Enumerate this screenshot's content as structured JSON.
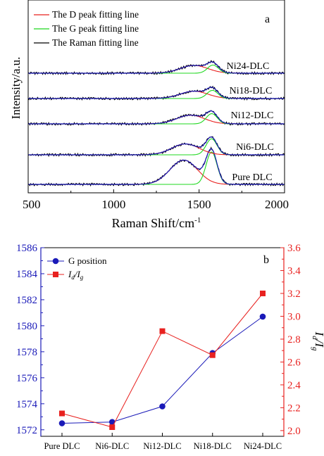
{
  "chart_data": [
    {
      "panel_label": "a",
      "type": "line",
      "xlabel": "Raman Shift/cm",
      "xlabel_superscript": "-1",
      "ylabel": "Intensity/a.u.",
      "xlim": [
        500,
        2000
      ],
      "x_ticks": [
        500,
        1000,
        1500,
        2000
      ],
      "y_ticks": "none",
      "legend_position": "top-left",
      "legend": [
        {
          "label": "The D peak fitting line",
          "color": "#e8211f"
        },
        {
          "label": "The G peak fitting line",
          "color": "#1fd81f"
        },
        {
          "label": "The Raman fitting line",
          "color": "#000000"
        }
      ],
      "raman_fit_color": "#1a1ab8",
      "series": [
        {
          "name": "Pure DLC",
          "d_peak_center": 1410,
          "g_peak_center": 1573,
          "d_to_g_peak_ratio": 0.75,
          "relative_g_intensity": 1.0
        },
        {
          "name": "Ni6-DLC",
          "d_peak_center": 1420,
          "g_peak_center": 1573,
          "d_to_g_peak_ratio": 0.68,
          "relative_g_intensity": 0.55
        },
        {
          "name": "Ni12-DLC",
          "d_peak_center": 1450,
          "g_peak_center": 1574,
          "d_to_g_peak_ratio": 0.85,
          "relative_g_intensity": 0.35
        },
        {
          "name": "Ni18-DLC",
          "d_peak_center": 1470,
          "g_peak_center": 1578,
          "d_to_g_peak_ratio": 0.9,
          "relative_g_intensity": 0.22
        },
        {
          "name": "Ni24-DLC",
          "d_peak_center": 1470,
          "g_peak_center": 1581,
          "d_to_g_peak_ratio": 0.95,
          "relative_g_intensity": 0.18
        }
      ]
    },
    {
      "panel_label": "b",
      "type": "line",
      "categories": [
        "Pure DLC",
        "Ni6-DLC",
        "Ni12-DLC",
        "Ni18-DLC",
        "Ni24-DLC"
      ],
      "ylabel_right_parts": [
        "I",
        "d",
        "/I",
        "g"
      ],
      "ylim_left": [
        1571.5,
        1586
      ],
      "y_ticks_left": [
        1572,
        1574,
        1576,
        1578,
        1580,
        1582,
        1584,
        1586
      ],
      "ylim_right": [
        1.95,
        3.6
      ],
      "y_ticks_right": [
        "2.0",
        "2.2",
        "2.4",
        "2.6",
        "2.8",
        "3.0",
        "3.2",
        "3.4",
        "3.6"
      ],
      "left_axis_color": "#1a1ab8",
      "right_axis_color": "#e8211f",
      "legend_position": "top-left",
      "series": [
        {
          "name": "G position",
          "axis": "left",
          "color": "#1a1ab8",
          "marker": "circle",
          "values": [
            1572.5,
            1572.6,
            1573.8,
            1577.9,
            1580.7
          ]
        },
        {
          "name_parts": [
            "I",
            "d",
            "/I",
            "g"
          ],
          "axis": "right",
          "color": "#e8211f",
          "marker": "square",
          "values": [
            2.15,
            2.03,
            2.87,
            2.66,
            3.2
          ]
        }
      ]
    }
  ]
}
